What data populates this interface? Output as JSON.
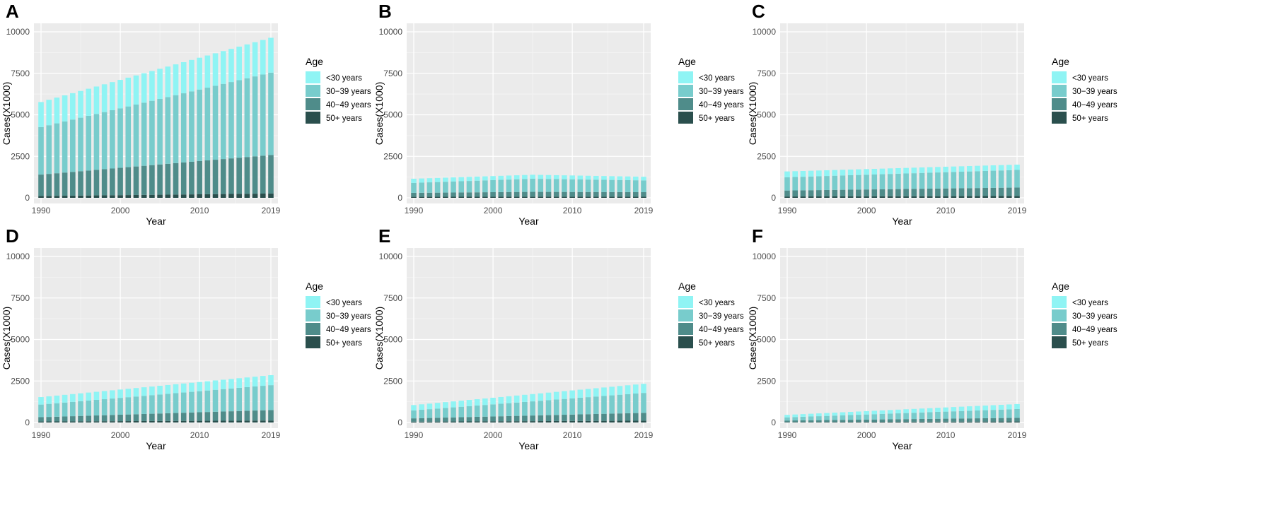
{
  "figure": {
    "description_label": "Six stacked bar panels of cases by age group, 1990-2019"
  },
  "chart_data": [
    {
      "panel": "A",
      "type": "bar",
      "stacked": true,
      "xlabel": "Year",
      "ylabel": "Cases(X1000)",
      "ylim": [
        0,
        10000
      ],
      "yticks": [
        0,
        2500,
        5000,
        7500,
        10000
      ],
      "xticks": [
        1990,
        2000,
        2010,
        2019
      ],
      "legend_title": "Age",
      "legend_position": "right",
      "series": [
        {
          "name": "50+ years",
          "color": "#2a4f4d"
        },
        {
          "name": "40-49 years",
          "color": "#4f8c8a"
        },
        {
          "name": "30-39 years",
          "color": "#78cccc"
        },
        {
          "name": "<30 years",
          "color": "#8ff4f4"
        }
      ],
      "legend_order": [
        "<30 years",
        "30−39 years",
        "40−49 years",
        "50+ years"
      ],
      "first_year": 1990,
      "start": {
        "50+ years": 110,
        "40-49 years": 1290,
        "30-39 years": 2860,
        "<30 years": 1510
      },
      "end": {
        "50+ years": 260,
        "40-49 years": 2320,
        "30-39 years": 4960,
        "<30 years": 2100
      }
    },
    {
      "panel": "B",
      "type": "bar",
      "stacked": true,
      "xlabel": "Year",
      "ylabel": "Cases(X1000)",
      "ylim": [
        0,
        10000
      ],
      "yticks": [
        0,
        2500,
        5000,
        7500,
        10000
      ],
      "xticks": [
        1990,
        2000,
        2010,
        2019
      ],
      "legend_title": "Age",
      "legend_position": "right",
      "series": [
        {
          "name": "50+ years",
          "color": "#2a4f4d"
        },
        {
          "name": "40-49 years",
          "color": "#4f8c8a"
        },
        {
          "name": "30-39 years",
          "color": "#78cccc"
        },
        {
          "name": "<30 years",
          "color": "#8ff4f4"
        }
      ],
      "legend_order": [
        "<30 years",
        "30−39 years",
        "40−49 years",
        "50+ years"
      ],
      "first_year": 1990,
      "start": {
        "50+ years": 60,
        "40-49 years": 240,
        "30-39 years": 600,
        "<30 years": 250
      },
      "peak_year": 2005,
      "peak": {
        "50+ years": 70,
        "40-49 years": 290,
        "30-39 years": 790,
        "<30 years": 240
      },
      "end": {
        "50+ years": 65,
        "40-49 years": 275,
        "30-39 years": 710,
        "<30 years": 220
      }
    },
    {
      "panel": "C",
      "type": "bar",
      "stacked": true,
      "xlabel": "Year",
      "ylabel": "Cases(X1000)",
      "ylim": [
        0,
        10000
      ],
      "yticks": [
        0,
        2500,
        5000,
        7500,
        10000
      ],
      "xticks": [
        1990,
        2000,
        2010,
        2019
      ],
      "legend_title": "Age",
      "legend_position": "right",
      "series": [
        {
          "name": "50+ years",
          "color": "#2a4f4d"
        },
        {
          "name": "40-49 years",
          "color": "#4f8c8a"
        },
        {
          "name": "30-39 years",
          "color": "#78cccc"
        },
        {
          "name": "<30 years",
          "color": "#8ff4f4"
        }
      ],
      "legend_order": [
        "<30 years",
        "30−39 years",
        "40−49 years",
        "50+ years"
      ],
      "first_year": 1990,
      "start": {
        "50+ years": 80,
        "40-49 years": 360,
        "30-39 years": 800,
        "<30 years": 350
      },
      "end": {
        "50+ years": 110,
        "40-49 years": 510,
        "30-39 years": 1060,
        "<30 years": 320
      }
    },
    {
      "panel": "D",
      "type": "bar",
      "stacked": true,
      "xlabel": "Year",
      "ylabel": "Cases(X1000)",
      "ylim": [
        0,
        10000
      ],
      "yticks": [
        0,
        2500,
        5000,
        7500,
        10000
      ],
      "xticks": [
        1990,
        2000,
        2010,
        2019
      ],
      "legend_title": "Age",
      "legend_position": "right",
      "series": [
        {
          "name": "50+ years",
          "color": "#2a4f4d"
        },
        {
          "name": "40-49 years",
          "color": "#4f8c8a"
        },
        {
          "name": "30-39 years",
          "color": "#78cccc"
        },
        {
          "name": "<30 years",
          "color": "#8ff4f4"
        }
      ],
      "legend_order": [
        "<30 years",
        "30−39 years",
        "40−49 years",
        "50+ years"
      ],
      "first_year": 1990,
      "start": {
        "50+ years": 60,
        "40-49 years": 260,
        "30-39 years": 760,
        "<30 years": 450
      },
      "end": {
        "50+ years": 120,
        "40-49 years": 630,
        "30-39 years": 1500,
        "<30 years": 600
      }
    },
    {
      "panel": "E",
      "type": "bar",
      "stacked": true,
      "xlabel": "Year",
      "ylabel": "Cases(X1000)",
      "ylim": [
        0,
        10000
      ],
      "yticks": [
        0,
        2500,
        5000,
        7500,
        10000
      ],
      "xticks": [
        1990,
        2000,
        2010,
        2019
      ],
      "legend_title": "Age",
      "legend_position": "right",
      "series": [
        {
          "name": "50+ years",
          "color": "#2a4f4d"
        },
        {
          "name": "40-49 years",
          "color": "#4f8c8a"
        },
        {
          "name": "30-39 years",
          "color": "#78cccc"
        },
        {
          "name": "<30 years",
          "color": "#8ff4f4"
        }
      ],
      "legend_order": [
        "<30 years",
        "30−39 years",
        "40−49 years",
        "50+ years"
      ],
      "first_year": 1990,
      "start": {
        "50+ years": 50,
        "40-49 years": 200,
        "30-39 years": 480,
        "<30 years": 320
      },
      "end": {
        "50+ years": 110,
        "40-49 years": 470,
        "30-39 years": 1200,
        "<30 years": 550
      }
    },
    {
      "panel": "F",
      "type": "bar",
      "stacked": true,
      "xlabel": "Year",
      "ylabel": "Cases(X1000)",
      "ylim": [
        0,
        10000
      ],
      "yticks": [
        0,
        2500,
        5000,
        7500,
        10000
      ],
      "xticks": [
        1990,
        2000,
        2010,
        2019
      ],
      "legend_title": "Age",
      "legend_position": "right",
      "series": [
        {
          "name": "50+ years",
          "color": "#2a4f4d"
        },
        {
          "name": "40-49 years",
          "color": "#4f8c8a"
        },
        {
          "name": "30-39 years",
          "color": "#78cccc"
        },
        {
          "name": "<30 years",
          "color": "#8ff4f4"
        }
      ],
      "legend_order": [
        "<30 years",
        "30−39 years",
        "40−49 years",
        "50+ years"
      ],
      "first_year": 1990,
      "start": {
        "50+ years": 30,
        "40-49 years": 90,
        "30-39 years": 190,
        "<30 years": 150
      },
      "end": {
        "50+ years": 60,
        "40-49 years": 220,
        "30-39 years": 530,
        "<30 years": 300
      }
    }
  ]
}
